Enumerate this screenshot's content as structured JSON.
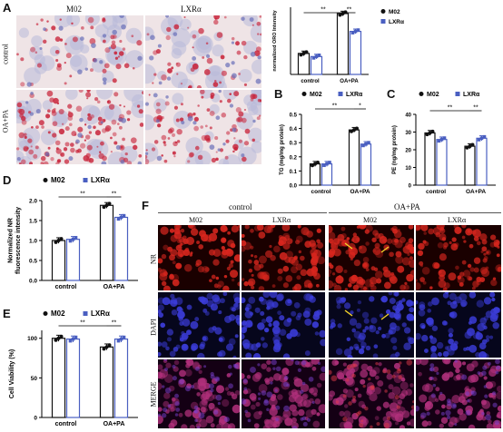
{
  "panels": {
    "A": {
      "letter": "A",
      "col_headers": [
        "M02",
        "LXRα"
      ],
      "row_labels": [
        "control",
        "OA+PA"
      ]
    },
    "F": {
      "letter": "F",
      "group_headers": [
        "control",
        "OA+PA"
      ],
      "col_headers": [
        "M02",
        "LXRα",
        "M02",
        "LXRα"
      ],
      "row_labels": [
        "NR",
        "DAPI",
        "MERGE"
      ]
    },
    "B": {
      "letter": "B"
    },
    "C": {
      "letter": "C"
    },
    "D": {
      "letter": "D"
    },
    "E": {
      "letter": "E"
    }
  },
  "colors": {
    "m02": "#111111",
    "lxra": "#4a5fc1",
    "he_bg": "#efe4e6",
    "oro_red": "#c8243a",
    "nr_red": "#d8261e",
    "dapi_blue": "#3b3cd8",
    "merge_magenta": "#b2307c",
    "arrow": "#f2d22a"
  },
  "chart_data": [
    {
      "id": "A-bar",
      "type": "bar",
      "categories": [
        "control",
        "OA+PA"
      ],
      "series": [
        {
          "name": "M02",
          "values": [
            1.0,
            2.9
          ]
        },
        {
          "name": "LXRα",
          "values": [
            0.85,
            2.05
          ]
        }
      ],
      "ylabel": "normalized ORO Intensity",
      "ylim": [
        0,
        3.2
      ],
      "significance": [
        {
          "label": "**",
          "between": "M02 control – M02 OA+PA"
        },
        {
          "label": "**",
          "between": "M02 OA+PA – LXRα OA+PA"
        }
      ],
      "legend_position": "right"
    },
    {
      "id": "B",
      "type": "bar",
      "categories": [
        "control",
        "OA+PA"
      ],
      "series": [
        {
          "name": "M02",
          "values": [
            0.15,
            0.39
          ]
        },
        {
          "name": "LXRα",
          "values": [
            0.15,
            0.29
          ]
        }
      ],
      "ylabel": "TG (mg/mg protein)",
      "ylim": [
        0,
        0.5
      ],
      "yticks": [
        "0.0",
        "0.1",
        "0.2",
        "0.3",
        "0.4",
        "0.5"
      ],
      "significance": [
        {
          "label": "**",
          "between": "M02 control – M02 OA+PA"
        },
        {
          "label": "*",
          "between": "M02 OA+PA – LXRα OA+PA"
        }
      ],
      "legend_position": "top"
    },
    {
      "id": "C",
      "type": "bar",
      "categories": [
        "control",
        "OA+PA"
      ],
      "series": [
        {
          "name": "M02",
          "values": [
            29.5,
            22.0
          ]
        },
        {
          "name": "LXRα",
          "values": [
            25.8,
            26.5
          ]
        }
      ],
      "ylabel": "PE (ng/mg protein)",
      "ylim": [
        0,
        40
      ],
      "yticks": [
        "0",
        "10",
        "20",
        "30",
        "40"
      ],
      "significance": [
        {
          "label": "**",
          "between": "M02 control – M02 OA+PA"
        },
        {
          "label": "**",
          "between": "M02 OA+PA – LXRα OA+PA"
        }
      ],
      "legend_position": "top"
    },
    {
      "id": "D",
      "type": "bar",
      "categories": [
        "control",
        "OA+PA"
      ],
      "series": [
        {
          "name": "M02",
          "values": [
            1.0,
            1.88
          ]
        },
        {
          "name": "LXRα",
          "values": [
            1.03,
            1.58
          ]
        }
      ],
      "ylabel": "Normalized NR fluorescence intensity",
      "ylim": [
        0,
        2.0
      ],
      "yticks": [
        "0.0",
        "0.5",
        "1.0",
        "1.5",
        "2.0"
      ],
      "significance": [
        {
          "label": "**",
          "between": "M02 control – M02 OA+PA"
        },
        {
          "label": "**",
          "between": "M02 OA+PA – LXRα OA+PA"
        }
      ],
      "legend_position": "top"
    },
    {
      "id": "E",
      "type": "bar",
      "categories": [
        "control",
        "OA+PA"
      ],
      "series": [
        {
          "name": "M02",
          "values": [
            100,
            89
          ]
        },
        {
          "name": "LXRα",
          "values": [
            99,
            99
          ]
        }
      ],
      "ylabel": "Cell Viability (%)",
      "ylim": [
        0,
        110
      ],
      "yticks": [
        "0",
        "50",
        "100"
      ],
      "significance": [
        {
          "label": "**",
          "between": "M02 control – M02 OA+PA"
        },
        {
          "label": "**",
          "between": "M02 OA+PA – LXRα OA+PA"
        }
      ],
      "legend_position": "top"
    }
  ]
}
